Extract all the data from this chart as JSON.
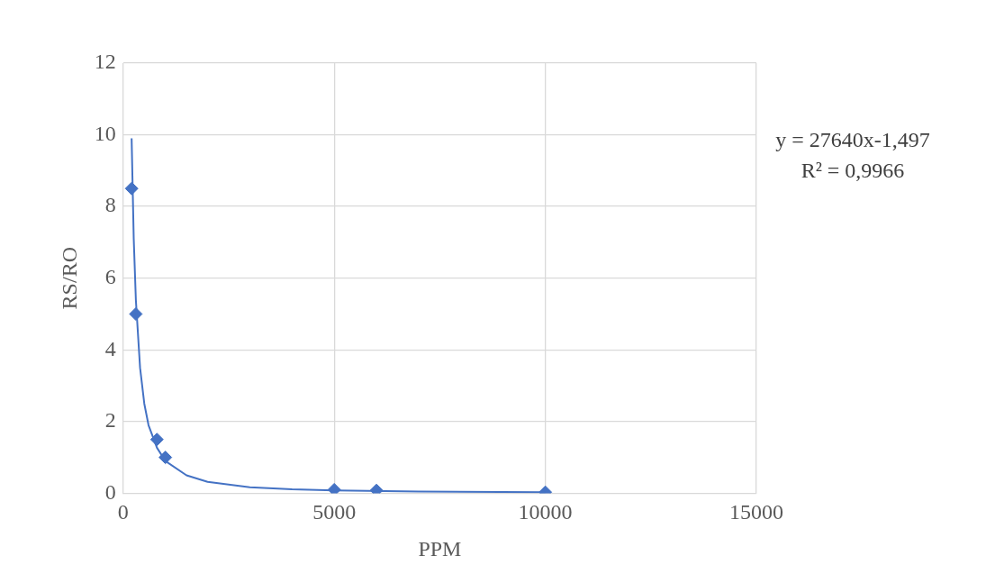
{
  "chart_data": {
    "type": "scatter",
    "xlabel": "PPM",
    "ylabel": "RS/RO",
    "xlim": [
      0,
      15000
    ],
    "xticks": [
      0,
      5000,
      10000,
      15000
    ],
    "ylim": [
      0,
      12
    ],
    "yticks": [
      0,
      2,
      4,
      6,
      8,
      10,
      12
    ],
    "grid": true,
    "legend": false,
    "marker": "diamond",
    "annotations": [
      "y = 27640x-1,497",
      "R² = 0,9966"
    ],
    "series": [
      {
        "type": "scatter",
        "color": "#4472c4",
        "x": [
          200,
          300,
          800,
          1000,
          5000,
          6000,
          10000
        ],
        "values": [
          8.5,
          5.0,
          1.5,
          1.0,
          0.1,
          0.08,
          0.03
        ]
      },
      {
        "type": "line",
        "color": "#4472c4",
        "marker": "none",
        "line_style": "solid",
        "x": [
          200,
          250,
          300,
          400,
          500,
          600,
          800,
          1000,
          1500,
          2000,
          3000,
          4000,
          5000,
          7000,
          10000
        ],
        "values": [
          9.9,
          7.1,
          5.4,
          3.5,
          2.5,
          1.9,
          1.27,
          0.9,
          0.5,
          0.32,
          0.17,
          0.11,
          0.08,
          0.05,
          0.03
        ]
      }
    ]
  }
}
